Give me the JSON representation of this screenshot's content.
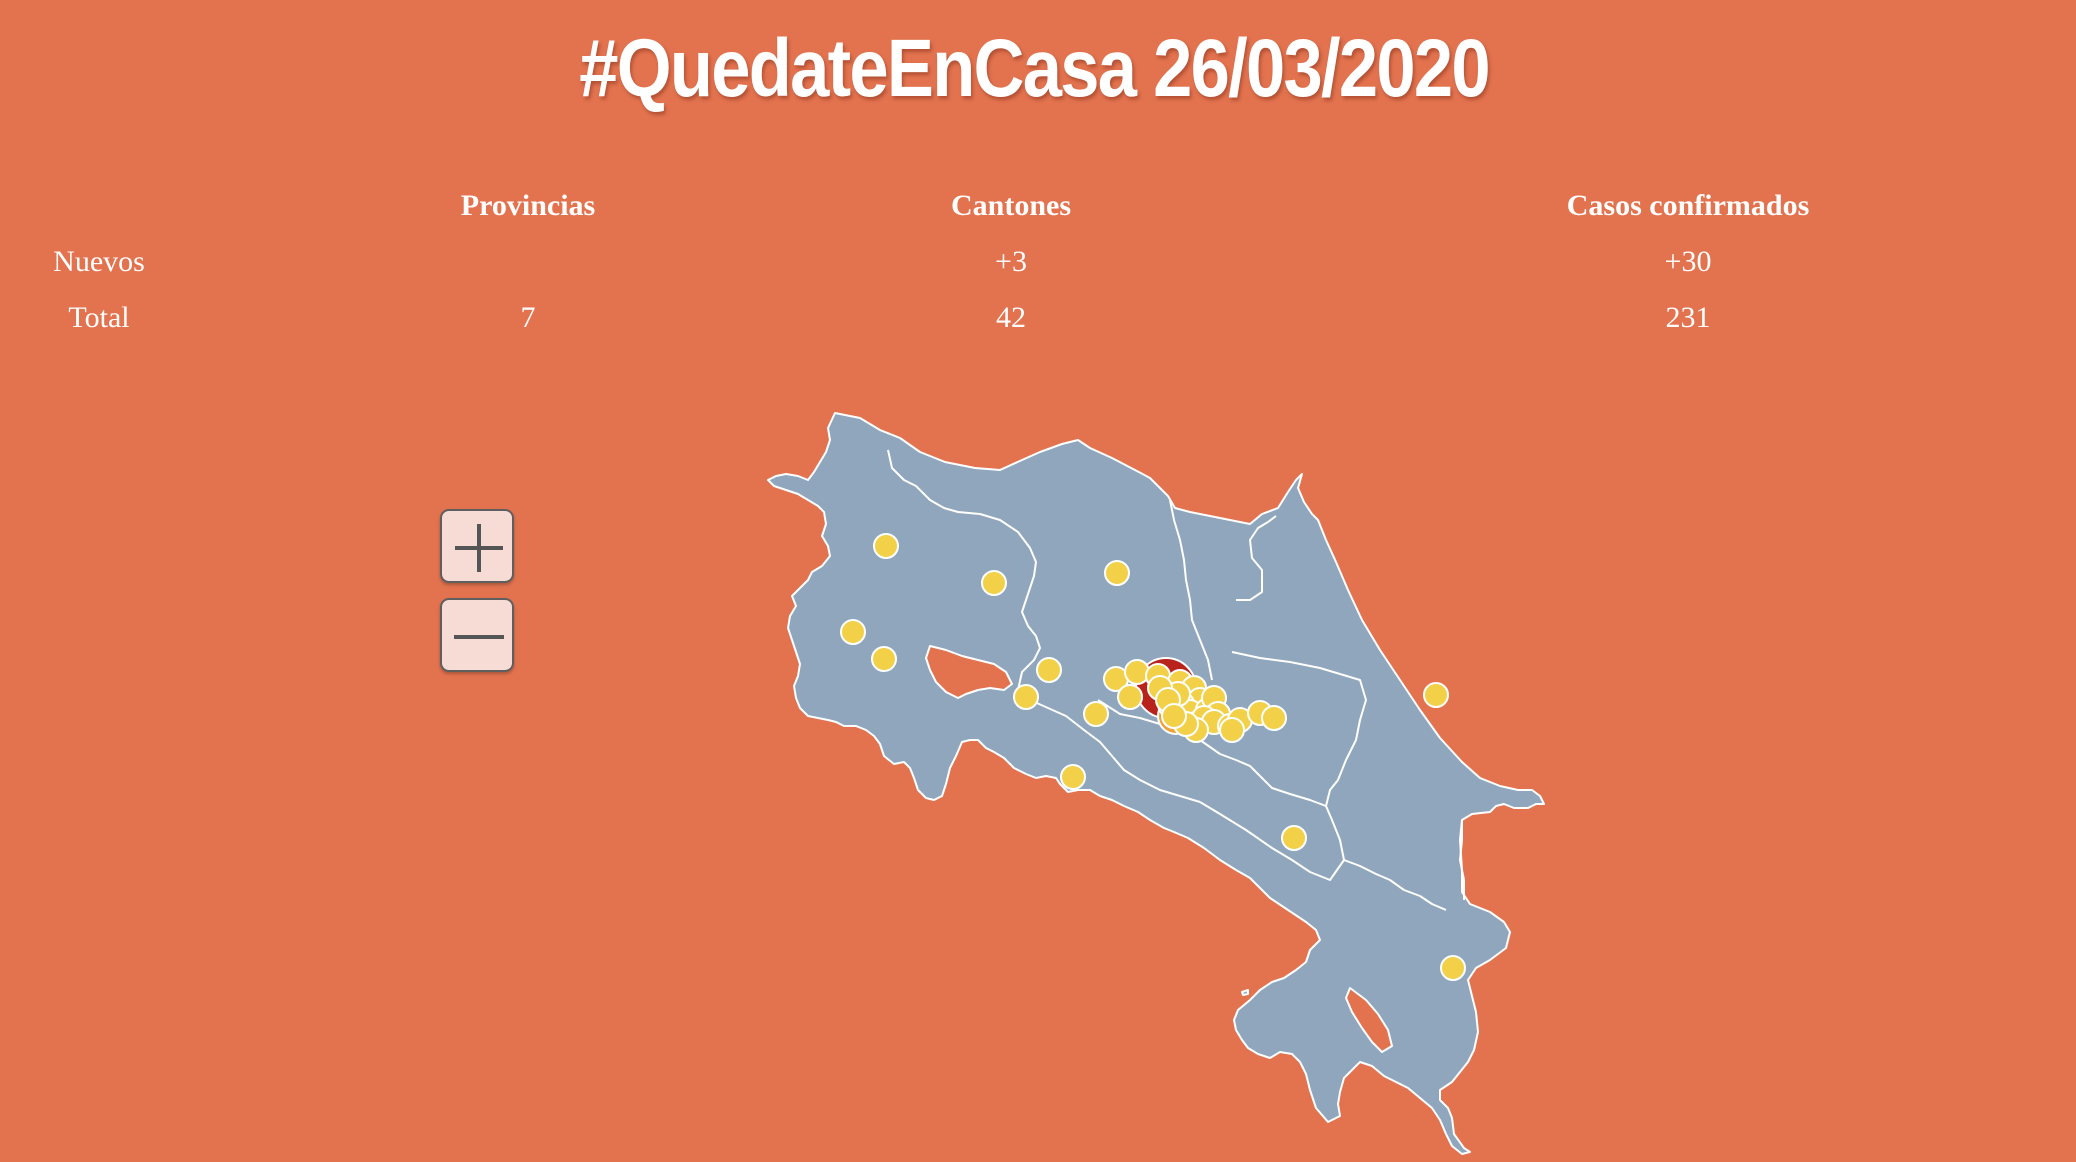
{
  "title": "#QuedateEnCasa 26/03/2020",
  "summary": {
    "headers": [
      "Provincias",
      "Cantones",
      "Casos confirmados"
    ],
    "rows": [
      {
        "label": "Nuevos",
        "provincias": "",
        "cantones": "+3",
        "casos": "+30"
      },
      {
        "label": "Total",
        "provincias": "7",
        "cantones": "42",
        "casos": "231"
      }
    ]
  },
  "zoom_controls": {
    "zoom_in_icon": "plus-icon",
    "zoom_out_icon": "minus-icon"
  },
  "map": {
    "region": "Costa Rica",
    "land_color": "#8fa6bd",
    "border_color": "#ffffff",
    "sea_color": "#e3734f",
    "marker_colors": {
      "low": "#f2d048",
      "medium": "#f0a13a",
      "high": "#b8231c"
    },
    "marker_count": 42
  }
}
